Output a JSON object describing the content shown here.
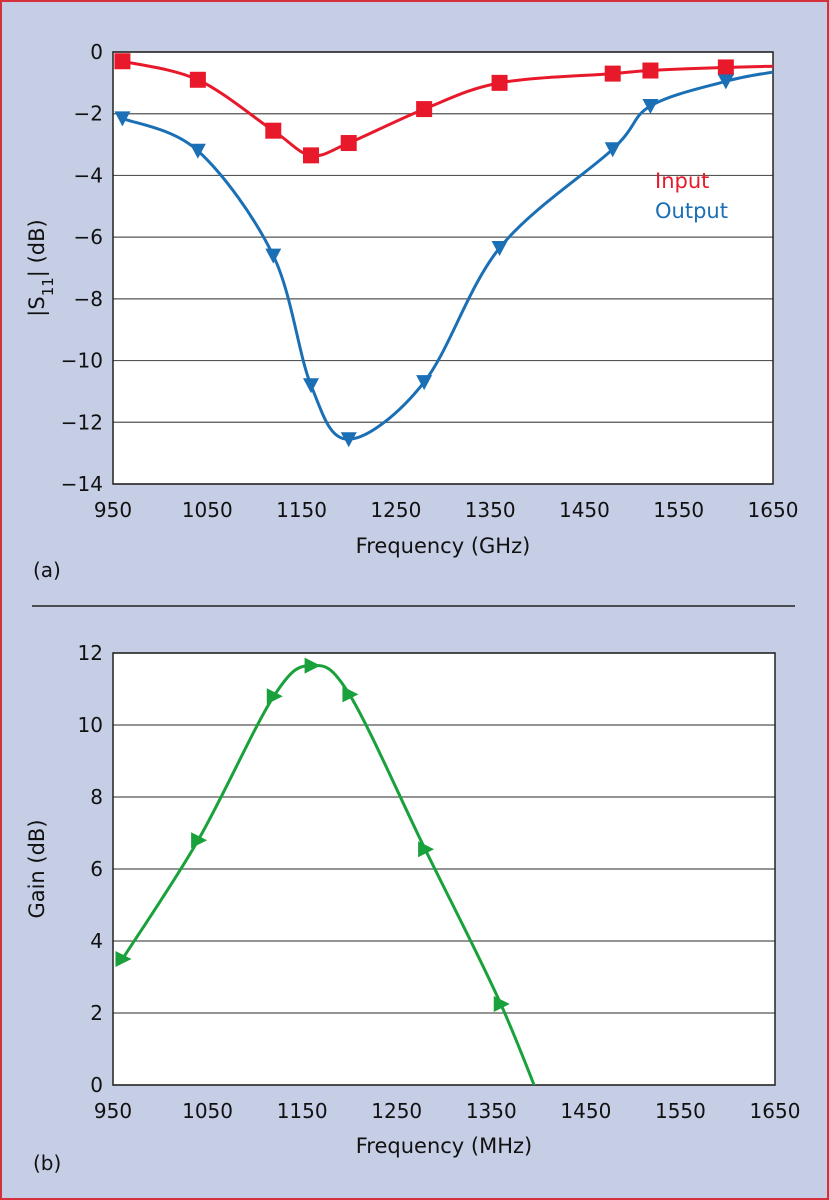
{
  "colors": {
    "background": "#c6cee6",
    "border": "#d4313b",
    "plot_bg": "#ffffff",
    "grid": "#555555",
    "input": "#e8192b",
    "output": "#1a6fb5",
    "gain": "#19a13b"
  },
  "chart_data": [
    {
      "type": "line",
      "panel_label": "(a)",
      "title": "",
      "xlabel": "Frequency (GHz)",
      "ylabel": "|S11| (dB)",
      "xlim": [
        950,
        1650
      ],
      "ylim": [
        -14,
        0
      ],
      "xticks": [
        950,
        1050,
        1150,
        1250,
        1350,
        1450,
        1550,
        1650
      ],
      "yticks": [
        0,
        -2,
        -4,
        -6,
        -8,
        -10,
        -12,
        -14
      ],
      "ytick_labels": [
        "0",
        "−2",
        "−4",
        "−6",
        "−8",
        "−10",
        "−12",
        "−14"
      ],
      "grid": true,
      "legend_position": "right",
      "series": [
        {
          "name": "Input",
          "marker": "square",
          "color": "#e8192b",
          "x": [
            960,
            1040,
            1120,
            1160,
            1200,
            1280,
            1360,
            1480,
            1520,
            1600
          ],
          "y": [
            -0.3,
            -0.9,
            -2.55,
            -3.35,
            -2.95,
            -1.85,
            -1.0,
            -0.7,
            -0.6,
            -0.5
          ]
        },
        {
          "name": "Output",
          "marker": "triangle-down",
          "color": "#1a6fb5",
          "x": [
            960,
            1040,
            1120,
            1160,
            1200,
            1280,
            1360,
            1480,
            1520,
            1600
          ],
          "y": [
            -2.15,
            -3.2,
            -6.6,
            -10.8,
            -12.55,
            -10.7,
            -6.35,
            -3.15,
            -1.75,
            -0.95
          ]
        }
      ]
    },
    {
      "type": "line",
      "panel_label": "(b)",
      "title": "",
      "xlabel": "Frequency (MHz)",
      "ylabel": "Gain (dB)",
      "xlim": [
        950,
        1650
      ],
      "ylim": [
        0,
        12
      ],
      "xticks": [
        950,
        1050,
        1150,
        1250,
        1350,
        1450,
        1550,
        1650
      ],
      "yticks": [
        0,
        2,
        4,
        6,
        8,
        10,
        12
      ],
      "ytick_labels": [
        "0",
        "2",
        "4",
        "6",
        "8",
        "10",
        "12"
      ],
      "grid": true,
      "series": [
        {
          "marker": "triangle-right",
          "color": "#19a13b",
          "x": [
            960,
            1040,
            1120,
            1160,
            1200,
            1280,
            1360
          ],
          "y": [
            3.5,
            6.8,
            10.8,
            11.65,
            10.85,
            6.55,
            2.25
          ]
        }
      ]
    }
  ]
}
